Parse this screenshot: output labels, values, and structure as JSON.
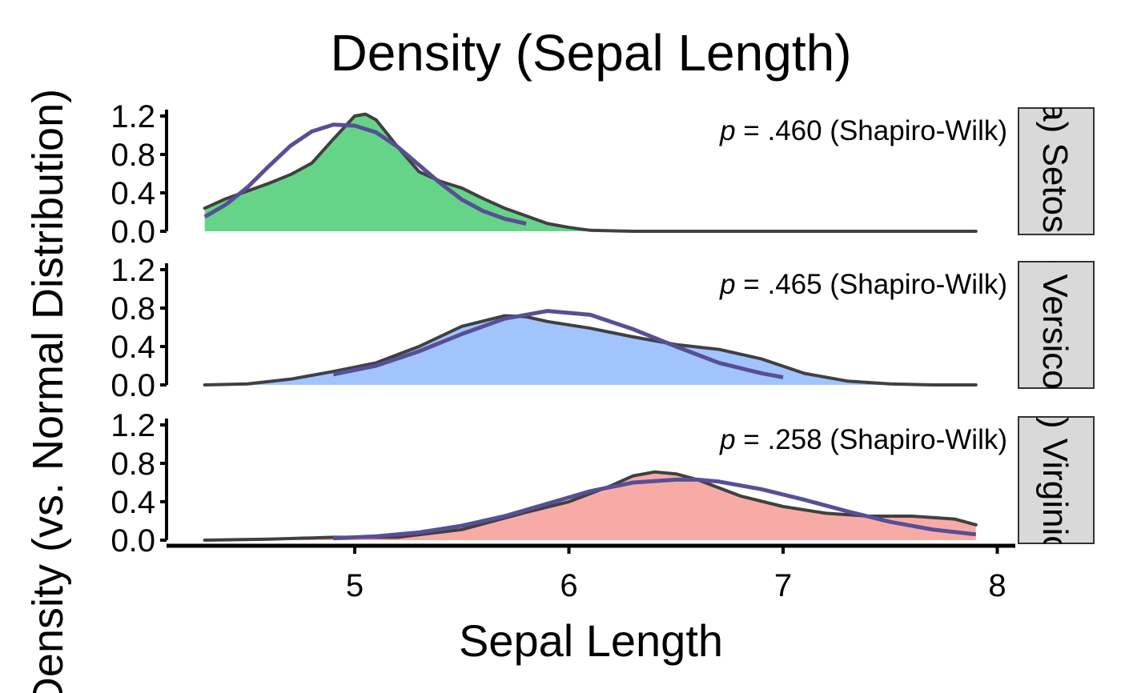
{
  "chart_data": {
    "type": "area",
    "title": "Density (Sepal Length)",
    "xlabel": "Sepal Length",
    "ylabel": "Density (vs. Normal Distribution)",
    "xlim": [
      4.3,
      7.9
    ],
    "x_ticks": [
      "5",
      "6",
      "7",
      "8"
    ],
    "x_tick_values": [
      5,
      6,
      7,
      8
    ],
    "ylim": [
      0,
      1.25
    ],
    "y_ticks": [
      "0.0",
      "0.4",
      "0.8",
      "1.2"
    ],
    "y_tick_values": [
      0,
      0.4,
      0.8,
      1.2
    ],
    "grid": false,
    "colors": {
      "density_line": "#404040",
      "normal_line": "#574F96",
      "strip_fill": "#D9D9D9",
      "strip_border": "#333333"
    },
    "panels": [
      {
        "strip_label": "(a) Setosa",
        "fill_color": "#66D488",
        "p_italic": "p",
        "p_rest": " = .460 (Shapiro-Wilk)",
        "density": {
          "x": [
            4.3,
            4.4,
            4.5,
            4.6,
            4.7,
            4.8,
            4.9,
            5.0,
            5.05,
            5.1,
            5.2,
            5.3,
            5.4,
            5.5,
            5.6,
            5.7,
            5.8,
            5.9,
            6.0,
            6.1,
            6.3,
            6.6,
            7.0,
            7.5,
            7.9
          ],
          "y": [
            0.24,
            0.34,
            0.42,
            0.5,
            0.59,
            0.71,
            0.96,
            1.2,
            1.22,
            1.16,
            0.88,
            0.62,
            0.52,
            0.45,
            0.34,
            0.24,
            0.16,
            0.08,
            0.04,
            0.01,
            0.0,
            0.0,
            0.0,
            0.0,
            0.0
          ]
        },
        "normal": {
          "x": [
            4.3,
            4.4,
            4.5,
            4.6,
            4.7,
            4.8,
            4.9,
            5.0,
            5.1,
            5.2,
            5.3,
            5.4,
            5.5,
            5.6,
            5.7,
            5.8
          ],
          "y": [
            0.15,
            0.28,
            0.46,
            0.68,
            0.89,
            1.04,
            1.11,
            1.1,
            1.03,
            0.88,
            0.69,
            0.5,
            0.33,
            0.21,
            0.13,
            0.08
          ]
        }
      },
      {
        "strip_label": "(b) Versicolor",
        "fill_color": "#A1C4FF",
        "p_italic": "p",
        "p_rest": " = .465 (Shapiro-Wilk)",
        "density": {
          "x": [
            4.3,
            4.5,
            4.7,
            4.9,
            5.1,
            5.3,
            5.5,
            5.7,
            5.8,
            5.9,
            6.1,
            6.3,
            6.5,
            6.7,
            6.9,
            7.1,
            7.3,
            7.5,
            7.7,
            7.9
          ],
          "y": [
            0.0,
            0.01,
            0.06,
            0.14,
            0.23,
            0.4,
            0.61,
            0.72,
            0.71,
            0.66,
            0.59,
            0.5,
            0.42,
            0.37,
            0.27,
            0.12,
            0.04,
            0.01,
            0.0,
            0.0
          ]
        },
        "normal": {
          "x": [
            4.9,
            5.1,
            5.3,
            5.5,
            5.7,
            5.9,
            6.1,
            6.3,
            6.5,
            6.7,
            6.9,
            7.0
          ],
          "y": [
            0.11,
            0.2,
            0.35,
            0.53,
            0.69,
            0.77,
            0.73,
            0.58,
            0.4,
            0.23,
            0.12,
            0.08
          ]
        }
      },
      {
        "strip_label": "(c) Virginica",
        "fill_color": "#F8ABA6",
        "p_italic": "p",
        "p_rest": " = .258 (Shapiro-Wilk)",
        "density": {
          "x": [
            4.3,
            4.6,
            4.9,
            5.2,
            5.5,
            5.8,
            6.0,
            6.2,
            6.3,
            6.4,
            6.5,
            6.6,
            6.8,
            7.0,
            7.2,
            7.4,
            7.6,
            7.8,
            7.9
          ],
          "y": [
            0.0,
            0.01,
            0.03,
            0.03,
            0.11,
            0.29,
            0.4,
            0.57,
            0.67,
            0.71,
            0.69,
            0.63,
            0.46,
            0.35,
            0.28,
            0.25,
            0.25,
            0.22,
            0.16
          ]
        },
        "normal": {
          "x": [
            4.9,
            5.1,
            5.3,
            5.5,
            5.7,
            5.9,
            6.1,
            6.3,
            6.5,
            6.6,
            6.7,
            6.9,
            7.1,
            7.3,
            7.5,
            7.7,
            7.9
          ],
          "y": [
            0.02,
            0.04,
            0.08,
            0.15,
            0.25,
            0.38,
            0.51,
            0.6,
            0.63,
            0.63,
            0.61,
            0.53,
            0.42,
            0.3,
            0.19,
            0.11,
            0.06
          ]
        }
      }
    ]
  }
}
